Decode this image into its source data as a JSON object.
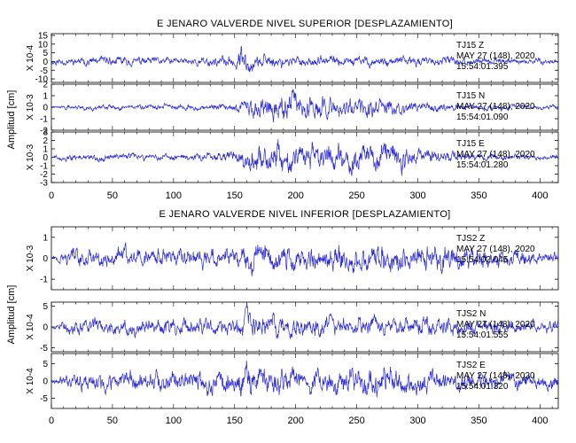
{
  "chart_data": [
    {
      "type": "line",
      "title": "E JENARO VALVERDE NIVEL SUPERIOR [DESPLAZAMIENTO]",
      "ylabel": "Amplitud [cm]",
      "xlim": [
        0,
        415
      ],
      "xticks": [
        0,
        50,
        100,
        150,
        200,
        250,
        300,
        350,
        400
      ],
      "traces": [
        {
          "name": "TJ15 Z",
          "date": "MAY 27 (148), 2020",
          "time": "15:54:01.395",
          "scale": "X 10-4",
          "ylim": [
            -12,
            16
          ],
          "yticks": [
            -10,
            -5,
            0,
            5,
            10,
            15
          ],
          "env": [
            [
              0,
              3
            ],
            [
              15,
              3
            ],
            [
              50,
              4
            ],
            [
              100,
              3
            ],
            [
              140,
              4
            ],
            [
              150,
              6
            ],
            [
              155,
              12
            ],
            [
              160,
              9
            ],
            [
              165,
              6
            ],
            [
              200,
              4
            ],
            [
              250,
              4
            ],
            [
              300,
              4
            ],
            [
              350,
              3
            ],
            [
              415,
              2
            ]
          ],
          "seed": 11
        },
        {
          "name": "TJ15 N",
          "date": "MAY 27 (148), 2020",
          "time": "15:54:01.090",
          "scale": "X 10-3",
          "ylim": [
            -2,
            2
          ],
          "yticks": [
            -2,
            -1,
            0,
            1,
            2
          ],
          "env": [
            [
              0,
              0.1
            ],
            [
              15,
              0.3
            ],
            [
              100,
              0.35
            ],
            [
              150,
              0.4
            ],
            [
              160,
              1.2
            ],
            [
              170,
              1.4
            ],
            [
              190,
              1.7
            ],
            [
              220,
              1.3
            ],
            [
              260,
              1.2
            ],
            [
              280,
              0.9
            ],
            [
              300,
              0.6
            ],
            [
              350,
              0.35
            ],
            [
              415,
              0.25
            ]
          ],
          "seed": 22
        },
        {
          "name": "TJ15 E",
          "date": "MAY 27 (148), 2020",
          "time": "15:54:01.280",
          "scale": "X 10-3",
          "ylim": [
            -3,
            3
          ],
          "yticks": [
            -3,
            -2,
            -1,
            0,
            1,
            2,
            3
          ],
          "env": [
            [
              0,
              0.2
            ],
            [
              15,
              0.6
            ],
            [
              100,
              0.6
            ],
            [
              150,
              0.9
            ],
            [
              165,
              2.1
            ],
            [
              185,
              2.5
            ],
            [
              230,
              2.0
            ],
            [
              270,
              2.4
            ],
            [
              290,
              2.0
            ],
            [
              300,
              1.2
            ],
            [
              350,
              0.6
            ],
            [
              415,
              0.4
            ]
          ],
          "seed": 33
        }
      ]
    },
    {
      "type": "line",
      "title": "E JENARO VALVERDE NIVEL INFERIOR [DESPLAZAMIENTO]",
      "ylabel": "Amplitud [cm]",
      "xlim": [
        0,
        415
      ],
      "xticks": [
        0,
        50,
        100,
        150,
        200,
        250,
        300,
        350,
        400
      ],
      "traces": [
        {
          "name": "TJS2 Z",
          "date": "MAY 27 (148), 2020",
          "time": "15:54:02.045",
          "scale": "X 10-3",
          "ylim": [
            -1.5,
            1.5
          ],
          "yticks": [
            -1,
            0,
            1
          ],
          "env": [
            [
              0,
              0.1
            ],
            [
              15,
              0.6
            ],
            [
              100,
              0.6
            ],
            [
              150,
              0.7
            ],
            [
              160,
              0.9
            ],
            [
              200,
              0.8
            ],
            [
              260,
              0.9
            ],
            [
              300,
              0.8
            ],
            [
              330,
              1.1
            ],
            [
              345,
              0.7
            ],
            [
              415,
              0.4
            ]
          ],
          "seed": 44
        },
        {
          "name": "TJS2 N",
          "date": "MAY 27 (148), 2020",
          "time": "15:54:01.555",
          "scale": "X 10-4",
          "ylim": [
            -6,
            6
          ],
          "yticks": [
            -5,
            0,
            5
          ],
          "env": [
            [
              0,
              0.3
            ],
            [
              15,
              2.5
            ],
            [
              100,
              2.8
            ],
            [
              150,
              3
            ],
            [
              160,
              5
            ],
            [
              165,
              4
            ],
            [
              200,
              3.5
            ],
            [
              250,
              3
            ],
            [
              300,
              3
            ],
            [
              350,
              2.5
            ],
            [
              415,
              2
            ]
          ],
          "seed": 55
        },
        {
          "name": "TJS2 E",
          "date": "MAY 27 (148), 2020",
          "time": "15:54:01.320",
          "scale": "X 10-4",
          "ylim": [
            -8,
            8
          ],
          "yticks": [
            -5,
            0,
            5
          ],
          "env": [
            [
              0,
              0.5
            ],
            [
              15,
              3.5
            ],
            [
              100,
              4
            ],
            [
              150,
              5
            ],
            [
              160,
              7
            ],
            [
              170,
              5
            ],
            [
              200,
              5
            ],
            [
              250,
              5
            ],
            [
              280,
              6
            ],
            [
              300,
              4.5
            ],
            [
              350,
              3.5
            ],
            [
              415,
              3
            ]
          ],
          "seed": 66
        }
      ]
    }
  ]
}
